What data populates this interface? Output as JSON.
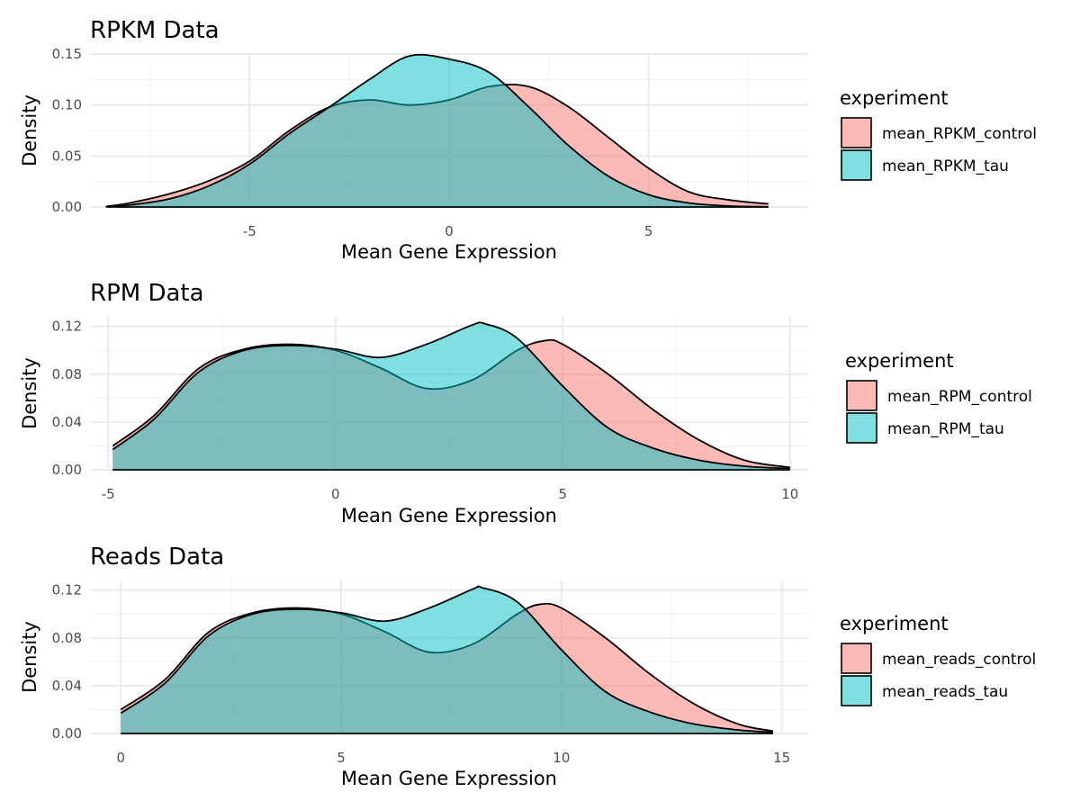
{
  "chart_data": [
    {
      "type": "area",
      "title": "RPKM Data",
      "xlabel": "Mean Gene Expression",
      "ylabel": "Density",
      "xlim": [
        -9,
        9
      ],
      "ylim": [
        0,
        0.15
      ],
      "xticks": [
        -5,
        0,
        5
      ],
      "xtick_labels": [
        "-5",
        "0",
        "5"
      ],
      "yticks": [
        0,
        0.05,
        0.1,
        0.15
      ],
      "ytick_labels": [
        "0.00",
        "0.05",
        "0.10",
        "0.15"
      ],
      "grid": true,
      "legend": {
        "title": "experiment",
        "position": "right"
      },
      "series": [
        {
          "name": "mean_RPKM_control",
          "color": "#F8766D",
          "x": [
            -8.6,
            -8,
            -7,
            -6,
            -5,
            -4,
            -3,
            -2,
            -1,
            0,
            1,
            2,
            3,
            4,
            5,
            6,
            7,
            8
          ],
          "y": [
            0.0005,
            0.004,
            0.013,
            0.026,
            0.045,
            0.075,
            0.098,
            0.105,
            0.1,
            0.105,
            0.118,
            0.118,
            0.098,
            0.068,
            0.038,
            0.015,
            0.007,
            0.003
          ]
        },
        {
          "name": "mean_RPKM_tau",
          "color": "#00BFC4",
          "x": [
            -8.6,
            -8,
            -7,
            -6,
            -5,
            -4,
            -3,
            -2,
            -1,
            0,
            1,
            2,
            3,
            4,
            5,
            6,
            7,
            8
          ],
          "y": [
            0.0005,
            0.002,
            0.008,
            0.021,
            0.042,
            0.072,
            0.098,
            0.125,
            0.148,
            0.145,
            0.132,
            0.098,
            0.06,
            0.03,
            0.012,
            0.004,
            0.001,
            0.0002
          ]
        }
      ]
    },
    {
      "type": "area",
      "title": "RPM Data",
      "xlabel": "Mean Gene Expression",
      "ylabel": "Density",
      "xlim": [
        -5.4,
        10.4
      ],
      "ylim": [
        0,
        0.128
      ],
      "xticks": [
        -5,
        0,
        5,
        10
      ],
      "xtick_labels": [
        "-5",
        "0",
        "5",
        "10"
      ],
      "yticks": [
        0,
        0.04,
        0.08,
        0.12
      ],
      "ytick_labels": [
        "0.00",
        "0.04",
        "0.08",
        "0.12"
      ],
      "grid": true,
      "legend": {
        "title": "experiment",
        "position": "right"
      },
      "series": [
        {
          "name": "mean_RPM_control",
          "color": "#F8766D",
          "x": [
            -4.9,
            -4,
            -3,
            -2,
            -1,
            0,
            1,
            2,
            3,
            4,
            4.6,
            5,
            6,
            7,
            8,
            9,
            10
          ],
          "y": [
            0.02,
            0.045,
            0.085,
            0.101,
            0.105,
            0.1,
            0.085,
            0.068,
            0.075,
            0.1,
            0.108,
            0.105,
            0.08,
            0.05,
            0.025,
            0.008,
            0.002
          ]
        },
        {
          "name": "mean_RPM_tau",
          "color": "#00BFC4",
          "x": [
            -4.9,
            -4,
            -3,
            -2,
            -1,
            0,
            1,
            2,
            3,
            3.3,
            4,
            5,
            6,
            7,
            8,
            9,
            10
          ],
          "y": [
            0.017,
            0.042,
            0.082,
            0.1,
            0.104,
            0.101,
            0.094,
            0.105,
            0.121,
            0.122,
            0.11,
            0.07,
            0.035,
            0.018,
            0.008,
            0.003,
            0.001
          ]
        }
      ]
    },
    {
      "type": "area",
      "title": "Reads Data",
      "xlabel": "Mean Gene Expression",
      "ylabel": "Density",
      "xlim": [
        -0.7,
        15.6
      ],
      "ylim": [
        0,
        0.128
      ],
      "xticks": [
        0,
        5,
        10,
        15
      ],
      "xtick_labels": [
        "0",
        "5",
        "10",
        "15"
      ],
      "yticks": [
        0,
        0.04,
        0.08,
        0.12
      ],
      "ytick_labels": [
        "0.00",
        "0.04",
        "0.08",
        "0.12"
      ],
      "grid": true,
      "legend": {
        "title": "experiment",
        "position": "right"
      },
      "series": [
        {
          "name": "mean_reads_control",
          "color": "#F8766D",
          "x": [
            0,
            1,
            2,
            3,
            4,
            5,
            6,
            7,
            8,
            9,
            9.5,
            10,
            11,
            12,
            13,
            14,
            14.8
          ],
          "y": [
            0.02,
            0.045,
            0.085,
            0.101,
            0.105,
            0.1,
            0.085,
            0.068,
            0.075,
            0.1,
            0.108,
            0.105,
            0.08,
            0.05,
            0.025,
            0.008,
            0.002
          ]
        },
        {
          "name": "mean_reads_tau",
          "color": "#00BFC4",
          "x": [
            0,
            1,
            2,
            3,
            4,
            5,
            6,
            7,
            8,
            8.2,
            9,
            10,
            11,
            12,
            13,
            14,
            14.8
          ],
          "y": [
            0.017,
            0.042,
            0.082,
            0.1,
            0.104,
            0.101,
            0.094,
            0.105,
            0.121,
            0.122,
            0.11,
            0.07,
            0.035,
            0.018,
            0.008,
            0.003,
            0.001
          ]
        }
      ]
    }
  ]
}
